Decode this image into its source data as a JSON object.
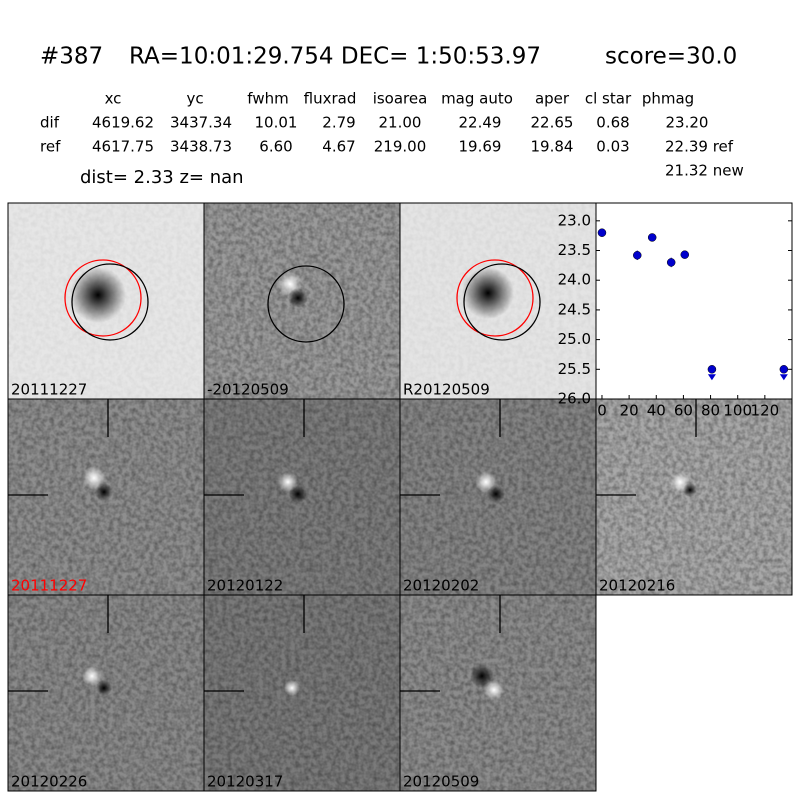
{
  "header": {
    "id": "#387",
    "coords": "RA=10:01:29.754 DEC= 1:50:53.97",
    "score": "score=30.0"
  },
  "table": {
    "columns": [
      "xc",
      "yc",
      "fwhm",
      "fluxrad",
      "isoarea",
      "mag auto",
      "aper",
      "cl star",
      "phmag"
    ],
    "rows": [
      [
        "dif",
        "4619.62",
        "3437.34",
        "10.01",
        "2.79",
        "21.00",
        "22.49",
        "22.65",
        "0.68",
        "23.20"
      ],
      [
        "ref",
        "4617.75",
        "3438.73",
        "6.60",
        "4.67",
        "219.00",
        "19.69",
        "19.84",
        "0.03",
        "22.39 ref"
      ]
    ],
    "note": "21.32 new"
  },
  "dist_line": "dist=  2.33      z=   nan",
  "panels": [
    {
      "label": "20111227"
    },
    {
      "label": "-20120509"
    },
    {
      "label": "R20120509"
    },
    {
      "label": "20111227",
      "color": "#ff0000"
    },
    {
      "label": "20120122"
    },
    {
      "label": "20120202"
    },
    {
      "label": "20120216"
    },
    {
      "label": "20120226"
    },
    {
      "label": "20120317"
    },
    {
      "label": "20120509"
    }
  ],
  "chart_data": {
    "type": "scatter",
    "color": "#0000cc",
    "points": {
      "x": [
        0,
        26,
        37,
        51,
        61
      ],
      "values": [
        23.2,
        23.58,
        23.28,
        23.7,
        23.57
      ],
      "errors": [
        0.06,
        0.08,
        0.05,
        0.08,
        0.06
      ]
    },
    "limits": {
      "x": [
        81,
        134
      ],
      "values": [
        25.5,
        25.5
      ]
    },
    "xlim": [
      -4.4,
      140
    ],
    "xticks": [
      0,
      20,
      40,
      60,
      80,
      100,
      120
    ],
    "ylim": [
      26.0,
      22.7
    ],
    "yticks": [
      {
        "value": 23,
        "label": "23.0"
      },
      {
        "value": 23.5,
        "label": "23.5"
      },
      {
        "value": 24,
        "label": "24.0"
      },
      {
        "value": 24.5,
        "label": "24.5"
      },
      {
        "value": 25,
        "label": "25.0"
      },
      {
        "value": 25.5,
        "label": "25.5"
      },
      {
        "value": 26,
        "label": "26.0"
      }
    ]
  }
}
